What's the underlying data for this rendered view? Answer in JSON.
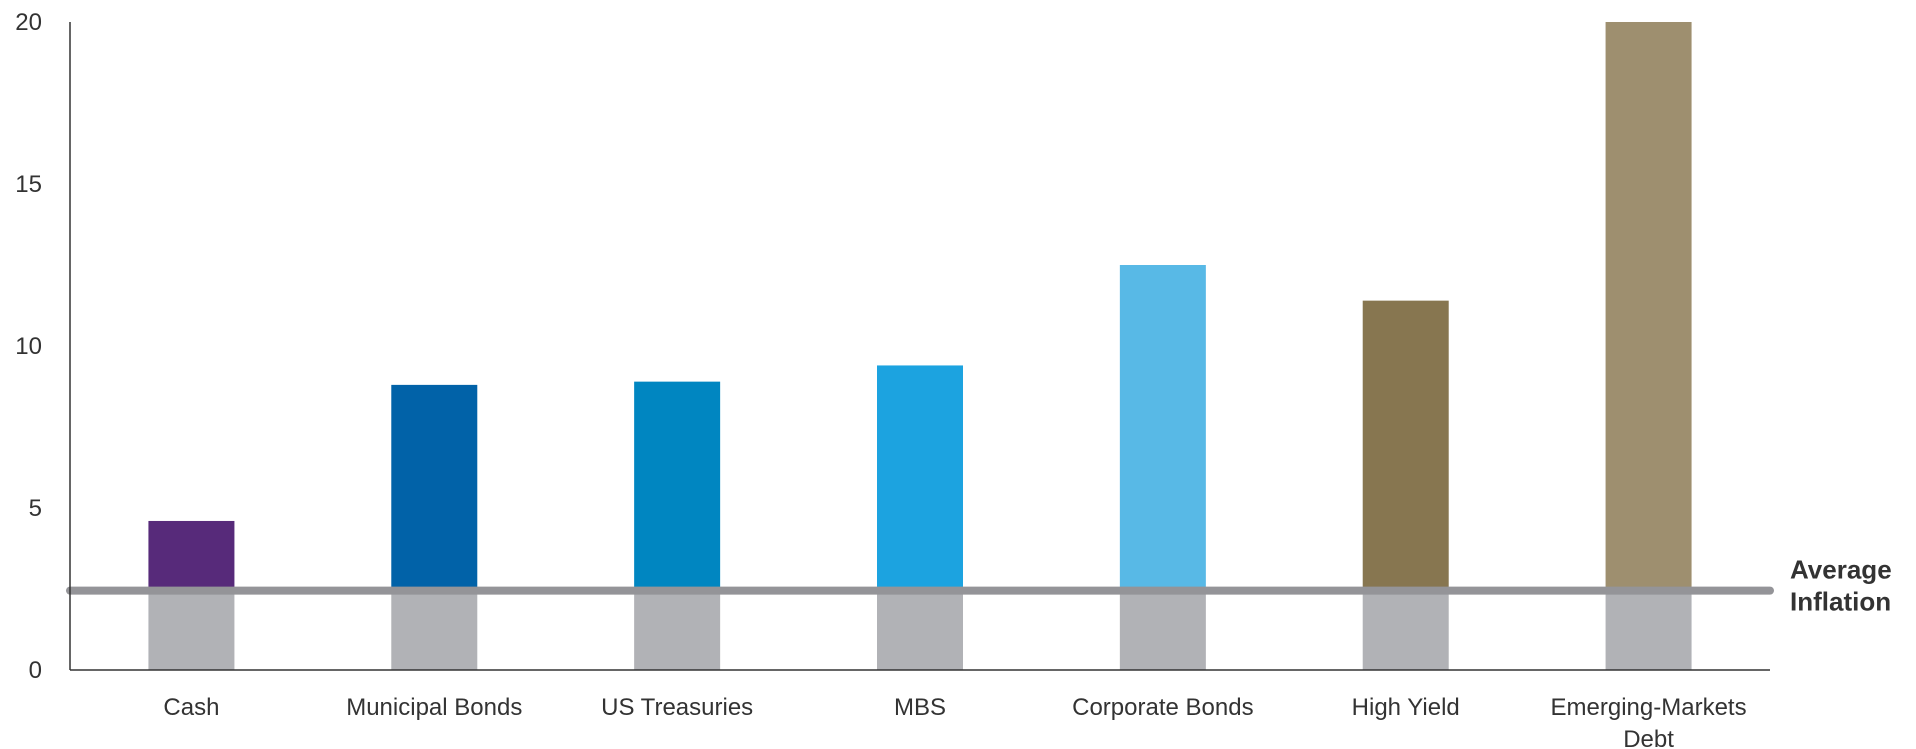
{
  "chart_data": {
    "type": "bar",
    "categories": [
      [
        "Cash"
      ],
      [
        "Municipal Bonds"
      ],
      [
        "US Treasuries"
      ],
      [
        "MBS"
      ],
      [
        "Corporate Bonds"
      ],
      [
        "High Yield"
      ],
      [
        "Emerging-Markets",
        "Debt"
      ]
    ],
    "values": [
      4.6,
      8.8,
      8.9,
      9.4,
      12.5,
      11.4,
      20.0
    ],
    "bar_colors": [
      "#572a7a",
      "#0162a8",
      "#0086c1",
      "#1ca3e0",
      "#58b9e6",
      "#877650",
      "#9e8f6f"
    ],
    "below_reference_color": "#b1b2b6",
    "reference_line": {
      "value": 2.45,
      "label": [
        "Average",
        "Inflation"
      ],
      "color": "#949498"
    },
    "ylim": [
      0,
      20
    ],
    "yticks": [
      0,
      5,
      10,
      15,
      20
    ],
    "axis_color": "#333333",
    "grid": false
  }
}
